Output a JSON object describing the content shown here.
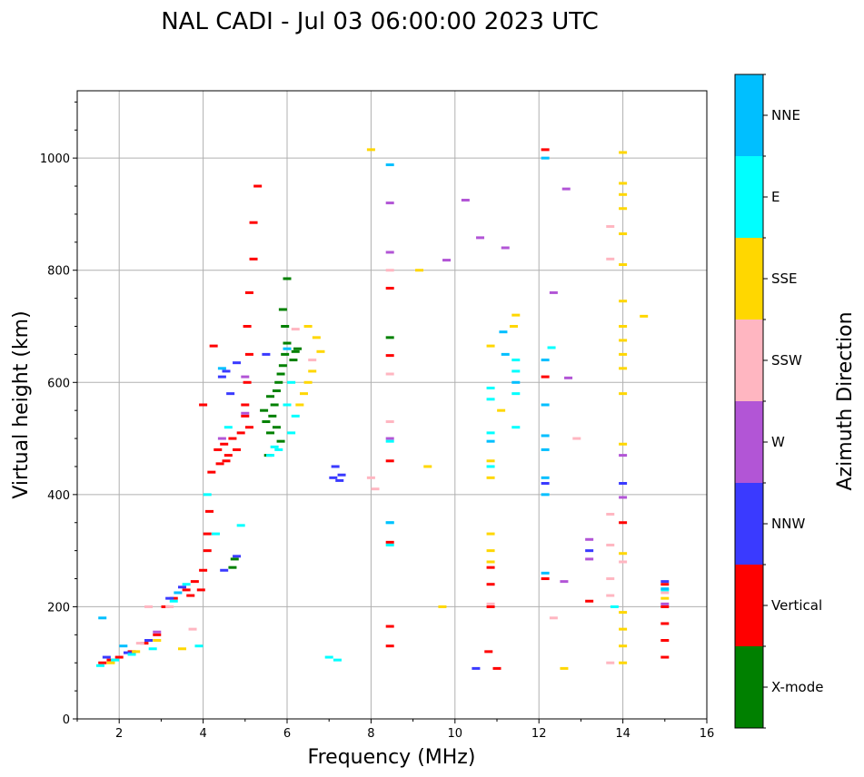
{
  "chart_data": {
    "type": "scatter",
    "title": "NAL CADI - Jul 03 06:00:00 2023 UTC",
    "xlabel": "Frequency (MHz)",
    "ylabel": "Virtual height (km)",
    "xlim": [
      1,
      16
    ],
    "ylim": [
      0,
      1120
    ],
    "xticks": [
      2,
      4,
      6,
      8,
      10,
      12,
      14,
      16
    ],
    "xtick_labels": [
      "2",
      "4",
      "6",
      "8",
      "10",
      "12",
      "14",
      "16"
    ],
    "yticks": [
      0,
      200,
      400,
      600,
      800,
      1000
    ],
    "ytick_labels": [
      "0",
      "200",
      "400",
      "600",
      "800",
      "1000"
    ],
    "grid": true,
    "colorbar": {
      "title": "Azimuth Direction",
      "categories": [
        "X-mode",
        "Vertical",
        "NNW",
        "W",
        "SSW",
        "SSE",
        "E",
        "NNE"
      ],
      "colors": [
        "#008000",
        "#ff0000",
        "#3a3aff",
        "#b255d6",
        "#ffb6c1",
        "#ffd700",
        "#00ffff",
        "#00bfff"
      ]
    },
    "series": [
      {
        "name": "X-mode",
        "points": [
          [
            5.55,
            470
          ],
          [
            5.6,
            510
          ],
          [
            5.65,
            540
          ],
          [
            5.7,
            560
          ],
          [
            5.75,
            585
          ],
          [
            5.8,
            600
          ],
          [
            5.85,
            615
          ],
          [
            5.9,
            630
          ],
          [
            5.95,
            650
          ],
          [
            6.0,
            670
          ],
          [
            5.95,
            700
          ],
          [
            5.9,
            730
          ],
          [
            6.0,
            785
          ],
          [
            5.5,
            530
          ],
          [
            5.45,
            550
          ],
          [
            5.6,
            575
          ],
          [
            6.15,
            640
          ],
          [
            6.2,
            655
          ],
          [
            4.7,
            270
          ],
          [
            4.75,
            285
          ],
          [
            8.45,
            680
          ],
          [
            6.25,
            660
          ],
          [
            5.75,
            520
          ],
          [
            5.85,
            495
          ]
        ]
      },
      {
        "name": "Vertical",
        "points": [
          [
            1.6,
            100
          ],
          [
            1.8,
            105
          ],
          [
            2.0,
            110
          ],
          [
            2.3,
            120
          ],
          [
            2.6,
            135
          ],
          [
            2.9,
            150
          ],
          [
            3.1,
            200
          ],
          [
            3.3,
            215
          ],
          [
            3.6,
            230
          ],
          [
            3.8,
            245
          ],
          [
            4.0,
            265
          ],
          [
            4.1,
            300
          ],
          [
            4.1,
            330
          ],
          [
            4.15,
            370
          ],
          [
            4.2,
            440
          ],
          [
            4.35,
            480
          ],
          [
            4.5,
            490
          ],
          [
            4.6,
            470
          ],
          [
            4.7,
            500
          ],
          [
            4.8,
            480
          ],
          [
            4.9,
            510
          ],
          [
            5.0,
            560
          ],
          [
            5.05,
            600
          ],
          [
            5.1,
            650
          ],
          [
            5.05,
            700
          ],
          [
            5.1,
            760
          ],
          [
            5.2,
            820
          ],
          [
            5.3,
            950
          ],
          [
            5.2,
            885
          ],
          [
            4.25,
            665
          ],
          [
            4.0,
            560
          ],
          [
            5.0,
            540
          ],
          [
            5.1,
            520
          ],
          [
            4.4,
            455
          ],
          [
            4.55,
            460
          ],
          [
            3.7,
            220
          ],
          [
            3.95,
            230
          ],
          [
            8.45,
            460
          ],
          [
            8.45,
            315
          ],
          [
            8.45,
            165
          ],
          [
            8.45,
            130
          ],
          [
            8.45,
            648
          ],
          [
            8.45,
            768
          ],
          [
            10.8,
            120
          ],
          [
            11.0,
            90
          ],
          [
            10.85,
            200
          ],
          [
            12.15,
            250
          ],
          [
            12.15,
            610
          ],
          [
            12.15,
            1015
          ],
          [
            13.2,
            210
          ],
          [
            14.0,
            350
          ],
          [
            15.0,
            110
          ],
          [
            15.0,
            140
          ],
          [
            15.0,
            170
          ],
          [
            15.0,
            200
          ],
          [
            15.0,
            240
          ],
          [
            10.85,
            240
          ],
          [
            10.85,
            270
          ]
        ]
      },
      {
        "name": "NNW",
        "points": [
          [
            1.7,
            110
          ],
          [
            2.2,
            118
          ],
          [
            2.7,
            140
          ],
          [
            3.2,
            215
          ],
          [
            3.5,
            235
          ],
          [
            4.5,
            265
          ],
          [
            4.8,
            290
          ],
          [
            7.1,
            430
          ],
          [
            7.25,
            425
          ],
          [
            7.3,
            435
          ],
          [
            7.15,
            450
          ],
          [
            4.55,
            620
          ],
          [
            4.8,
            635
          ],
          [
            4.65,
            580
          ],
          [
            5.5,
            650
          ],
          [
            10.5,
            90
          ],
          [
            12.15,
            420
          ],
          [
            13.2,
            300
          ],
          [
            14.0,
            420
          ],
          [
            15.0,
            245
          ],
          [
            4.45,
            610
          ]
        ]
      },
      {
        "name": "W",
        "points": [
          [
            2.9,
            155
          ],
          [
            5.0,
            610
          ],
          [
            4.45,
            500
          ],
          [
            8.45,
            920
          ],
          [
            8.45,
            832
          ],
          [
            8.45,
            500
          ],
          [
            9.8,
            818
          ],
          [
            10.25,
            925
          ],
          [
            10.6,
            858
          ],
          [
            11.2,
            840
          ],
          [
            12.35,
            760
          ],
          [
            12.65,
            945
          ],
          [
            12.7,
            608
          ],
          [
            13.2,
            320
          ],
          [
            13.2,
            285
          ],
          [
            12.6,
            245
          ],
          [
            14.0,
            395
          ],
          [
            14.0,
            470
          ],
          [
            15.0,
            205
          ],
          [
            5.0,
            545
          ]
        ]
      },
      {
        "name": "SSW",
        "points": [
          [
            2.5,
            135
          ],
          [
            2.7,
            200
          ],
          [
            3.2,
            200
          ],
          [
            3.75,
            160
          ],
          [
            6.6,
            640
          ],
          [
            6.2,
            695
          ],
          [
            8.45,
            800
          ],
          [
            8.45,
            615
          ],
          [
            8.45,
            530
          ],
          [
            8.1,
            410
          ],
          [
            8.0,
            430
          ],
          [
            10.85,
            205
          ],
          [
            12.35,
            180
          ],
          [
            12.9,
            500
          ],
          [
            13.7,
            220
          ],
          [
            13.7,
            250
          ],
          [
            13.7,
            310
          ],
          [
            13.7,
            365
          ],
          [
            13.7,
            820
          ],
          [
            13.7,
            878
          ],
          [
            14.0,
            280
          ],
          [
            13.7,
            100
          ],
          [
            15.0,
            225
          ]
        ]
      },
      {
        "name": "SSE",
        "points": [
          [
            1.8,
            100
          ],
          [
            2.4,
            120
          ],
          [
            2.9,
            140
          ],
          [
            3.5,
            125
          ],
          [
            6.3,
            560
          ],
          [
            6.4,
            580
          ],
          [
            6.5,
            600
          ],
          [
            6.6,
            620
          ],
          [
            6.7,
            680
          ],
          [
            6.8,
            655
          ],
          [
            6.5,
            700
          ],
          [
            8.0,
            1015
          ],
          [
            9.15,
            800
          ],
          [
            9.35,
            450
          ],
          [
            9.7,
            200
          ],
          [
            10.85,
            330
          ],
          [
            10.85,
            300
          ],
          [
            10.85,
            280
          ],
          [
            10.85,
            430
          ],
          [
            10.85,
            460
          ],
          [
            10.85,
            665
          ],
          [
            11.4,
            700
          ],
          [
            11.45,
            720
          ],
          [
            11.1,
            550
          ],
          [
            12.6,
            90
          ],
          [
            14.0,
            100
          ],
          [
            14.0,
            130
          ],
          [
            14.0,
            160
          ],
          [
            14.0,
            190
          ],
          [
            14.0,
            295
          ],
          [
            14.0,
            490
          ],
          [
            14.0,
            580
          ],
          [
            14.0,
            625
          ],
          [
            14.0,
            650
          ],
          [
            14.0,
            675
          ],
          [
            14.0,
            700
          ],
          [
            14.0,
            745
          ],
          [
            14.0,
            810
          ],
          [
            14.0,
            865
          ],
          [
            14.0,
            910
          ],
          [
            14.0,
            935
          ],
          [
            14.0,
            955
          ],
          [
            14.0,
            1010
          ],
          [
            14.5,
            718
          ],
          [
            15.0,
            215
          ]
        ]
      },
      {
        "name": "E",
        "points": [
          [
            1.55,
            95
          ],
          [
            1.9,
            105
          ],
          [
            2.3,
            115
          ],
          [
            2.8,
            125
          ],
          [
            3.3,
            210
          ],
          [
            3.6,
            240
          ],
          [
            4.1,
            400
          ],
          [
            4.3,
            330
          ],
          [
            4.9,
            345
          ],
          [
            4.6,
            520
          ],
          [
            5.6,
            470
          ],
          [
            5.7,
            485
          ],
          [
            5.8,
            480
          ],
          [
            6.1,
            510
          ],
          [
            6.2,
            540
          ],
          [
            6.1,
            600
          ],
          [
            6.0,
            560
          ],
          [
            7.0,
            110
          ],
          [
            7.2,
            105
          ],
          [
            8.45,
            495
          ],
          [
            8.45,
            310
          ],
          [
            8.45,
            350
          ],
          [
            10.85,
            570
          ],
          [
            10.85,
            590
          ],
          [
            10.85,
            450
          ],
          [
            10.85,
            510
          ],
          [
            11.45,
            580
          ],
          [
            11.45,
            620
          ],
          [
            11.45,
            640
          ],
          [
            11.45,
            520
          ],
          [
            12.3,
            662
          ],
          [
            13.8,
            200
          ],
          [
            15.0,
            230
          ],
          [
            3.9,
            130
          ]
        ]
      },
      {
        "name": "NNE",
        "points": [
          [
            1.6,
            180
          ],
          [
            2.1,
            130
          ],
          [
            3.4,
            225
          ],
          [
            4.45,
            625
          ],
          [
            6.0,
            660
          ],
          [
            8.45,
            988
          ],
          [
            8.45,
            350
          ],
          [
            11.2,
            650
          ],
          [
            11.15,
            690
          ],
          [
            12.15,
            1000
          ],
          [
            12.15,
            640
          ],
          [
            12.15,
            430
          ],
          [
            12.15,
            400
          ],
          [
            12.15,
            260
          ],
          [
            12.15,
            560
          ],
          [
            12.15,
            505
          ],
          [
            12.15,
            480
          ],
          [
            11.45,
            600
          ],
          [
            10.85,
            495
          ],
          [
            15.0,
            232
          ]
        ]
      }
    ]
  }
}
